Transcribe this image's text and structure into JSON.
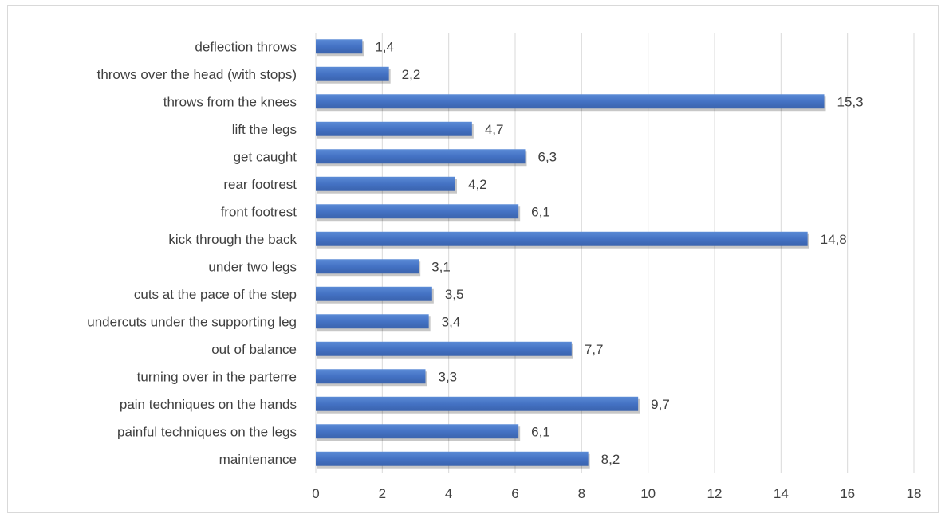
{
  "chart_data": {
    "type": "bar",
    "orientation": "horizontal",
    "title": "",
    "xlabel": "",
    "ylabel": "",
    "categories": [
      "deflection throws",
      "throws over the head (with stops)",
      "throws from the knees",
      "lift the legs",
      "get caught",
      "rear footrest",
      "front footrest",
      "kick through the back",
      "under two legs",
      "cuts at the pace of the step",
      "undercuts under the supporting leg",
      "out of balance",
      "turning over in the parterre",
      "pain techniques on the hands",
      "painful techniques on the legs",
      "maintenance"
    ],
    "values": [
      1.4,
      2.2,
      15.3,
      4.7,
      6.3,
      4.2,
      6.1,
      14.8,
      3.1,
      3.5,
      3.4,
      7.7,
      3.3,
      9.7,
      6.1,
      8.2
    ],
    "value_labels": [
      "1,4",
      "2,2",
      "15,3",
      "4,7",
      "6,3",
      "4,2",
      "6,1",
      "14,8",
      "3,1",
      "3,5",
      "3,4",
      "7,7",
      "3,3",
      "9,7",
      "6,1",
      "8,2"
    ],
    "xlim": [
      0,
      18
    ],
    "xticks": [
      0,
      2,
      4,
      6,
      8,
      10,
      12,
      14,
      16,
      18
    ],
    "xtick_labels": [
      "0",
      "2",
      "4",
      "6",
      "8",
      "10",
      "12",
      "14",
      "16",
      "18"
    ],
    "grid": "vertical",
    "legend": "none",
    "bar_color": "#4472c4",
    "grid_color": "#d9d9d9",
    "text_color": "#404040"
  }
}
